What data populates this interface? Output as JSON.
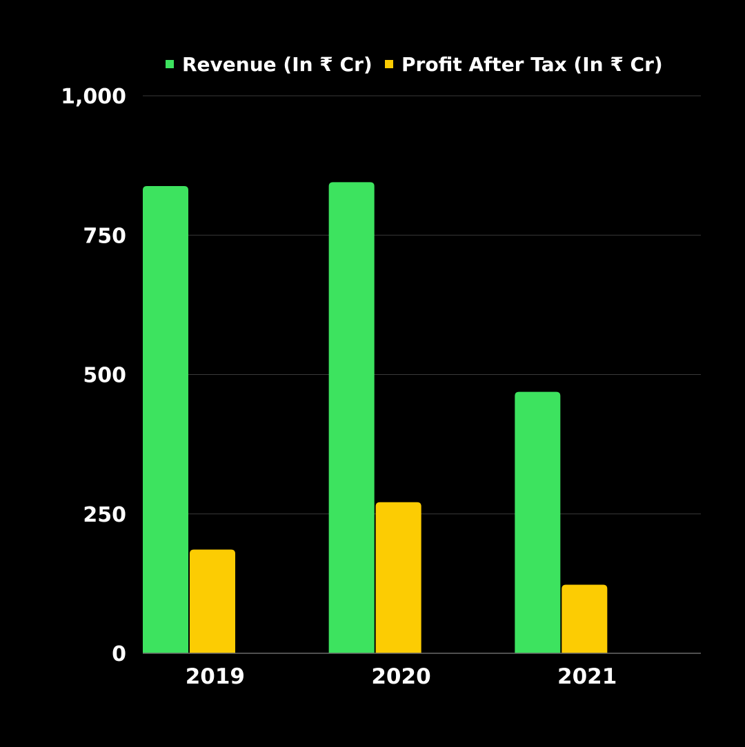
{
  "colors": {
    "background": "#000000",
    "gridline": "#3a3a3a",
    "axis": "#6a6a6a",
    "text": "#ffffff"
  },
  "chart_data": {
    "type": "bar",
    "categories": [
      "2019",
      "2020",
      "2021"
    ],
    "series": [
      {
        "name": "Revenue (In ₹ Cr)",
        "color": "#3de35f",
        "values": [
          838,
          845,
          469
        ]
      },
      {
        "name": "Profit After Tax (In ₹ Cr)",
        "color": "#fccc03",
        "values": [
          186,
          271,
          123
        ]
      }
    ],
    "yticks": [
      0,
      250,
      500,
      750,
      1000
    ],
    "ytick_labels": [
      "0",
      "250",
      "500",
      "750",
      "1,000"
    ],
    "ylim": [
      0,
      1000
    ],
    "grid": true,
    "legend_position": "top-center",
    "title": "",
    "xlabel": "",
    "ylabel": ""
  }
}
